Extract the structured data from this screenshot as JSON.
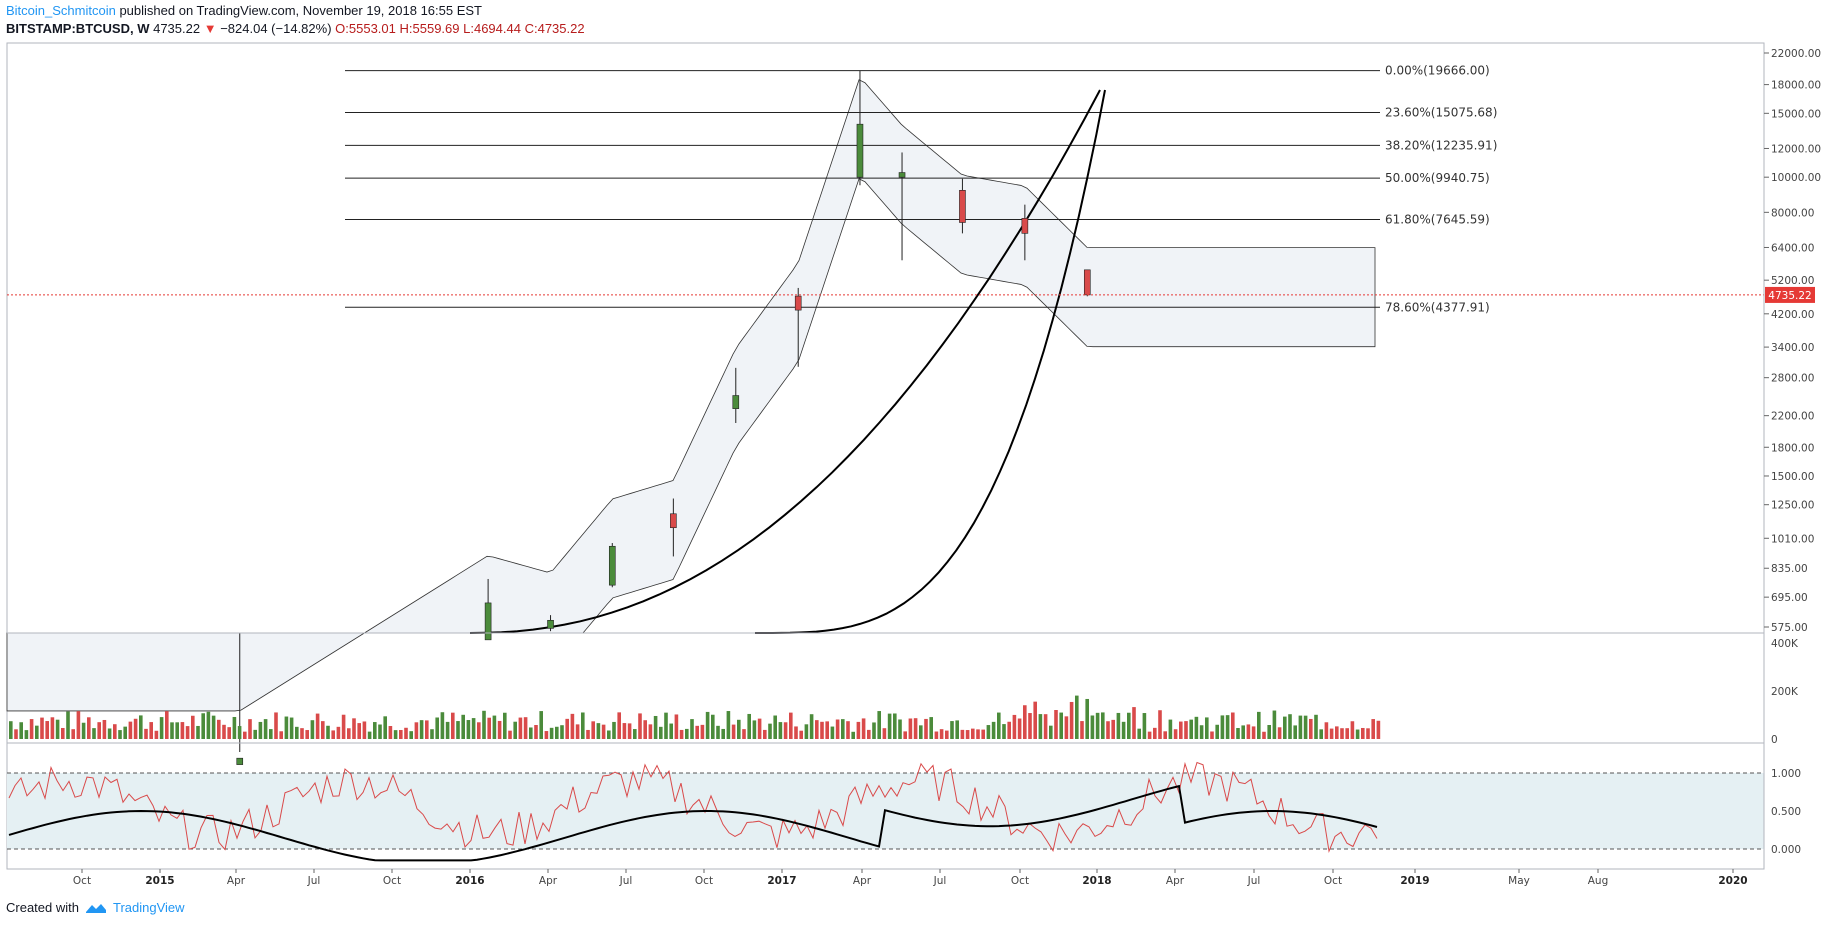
{
  "header": {
    "author": "Bitcoin_Schmitcoin",
    "published": "published on TradingView.com, November 19, 2018 16:55 EST",
    "symbol": "BITSTAMP:BTCUSD, W",
    "last": "4735.22",
    "change": "−824.04 (−14.82%)",
    "o": "O:5553.01",
    "h": "H:5559.69",
    "l": "L:4694.44",
    "c": "C:4735.22"
  },
  "footer": {
    "created_with": "Created with",
    "brand": "TradingView"
  },
  "colors": {
    "up": "#4b8b3b",
    "down": "#d94a4a",
    "price_line": "#e53935",
    "osc_red": "#d94a4a",
    "osc_black": "#000000",
    "band_fill": "#f0f3f7",
    "osc_band": "#e5f0f3",
    "ma": "#2196f3"
  },
  "chart_data": {
    "type": "candlestick",
    "symbol": "BITSTAMP:BTCUSD",
    "interval": "W",
    "price_axis": {
      "scale": "log",
      "ticks": [
        575,
        695,
        835,
        1010,
        1250,
        1500,
        1800,
        2200,
        2800,
        3400,
        4200,
        5200,
        6400,
        8000,
        10000,
        12000,
        15000,
        18000,
        22000
      ],
      "tick_labels": [
        "575.00",
        "695.00",
        "835.00",
        "1010.00",
        "1250.00",
        "1500.00",
        "1800.00",
        "2200.00",
        "2800.00",
        "3400.00",
        "4200.00",
        "5200.00",
        "6400.00",
        "8000.00",
        "10000.00",
        "12000.00",
        "15000.00",
        "18000.00",
        "22000.00"
      ]
    },
    "current_price": {
      "value": 4735.22,
      "label": "4735.22"
    },
    "time_axis": {
      "labels": [
        "Oct",
        "2015",
        "Apr",
        "Jul",
        "Oct",
        "2016",
        "Apr",
        "Jul",
        "Oct",
        "2017",
        "Apr",
        "Jul",
        "Oct",
        "2018",
        "Apr",
        "Jul",
        "Oct",
        "2019",
        "May",
        "Aug",
        "2020"
      ],
      "bold": [
        "2015",
        "2016",
        "2017",
        "2018",
        "2019",
        "2020"
      ]
    },
    "fib_levels": [
      {
        "value": 19666.0,
        "label": "0.00%(19666.00)"
      },
      {
        "value": 15075.68,
        "label": "23.60%(15075.68)"
      },
      {
        "value": 12235.91,
        "label": "38.20%(12235.91)"
      },
      {
        "value": 9940.75,
        "label": "50.00%(9940.75)"
      },
      {
        "value": 7645.59,
        "label": "61.80%(7645.59)"
      },
      {
        "value": 4377.91,
        "label": "78.60%(4377.91)"
      }
    ],
    "candles_monthly_approx": [
      {
        "t": "2015-06",
        "o": 240,
        "h": 260,
        "l": 220,
        "c": 250
      },
      {
        "t": "2016-06",
        "o": 530,
        "h": 780,
        "l": 520,
        "c": 670
      },
      {
        "t": "2016-09",
        "o": 570,
        "h": 620,
        "l": 560,
        "c": 600
      },
      {
        "t": "2016-12",
        "o": 750,
        "h": 980,
        "l": 740,
        "c": 960
      },
      {
        "t": "2017-03",
        "o": 1180,
        "h": 1300,
        "l": 900,
        "c": 1080
      },
      {
        "t": "2017-06",
        "o": 2300,
        "h": 2980,
        "l": 2100,
        "c": 2500
      },
      {
        "t": "2017-09",
        "o": 4700,
        "h": 4950,
        "l": 3000,
        "c": 4300
      },
      {
        "t": "2017-12",
        "o": 10000,
        "h": 19666,
        "l": 9500,
        "c": 14000
      },
      {
        "t": "2018-02",
        "o": 10000,
        "h": 11700,
        "l": 5900,
        "c": 10300
      },
      {
        "t": "2018-05",
        "o": 9200,
        "h": 9900,
        "l": 7000,
        "c": 7500
      },
      {
        "t": "2018-08",
        "o": 7700,
        "h": 8400,
        "l": 5900,
        "c": 7000
      },
      {
        "t": "2018-11",
        "o": 5553.01,
        "h": 5559.69,
        "l": 4694.44,
        "c": 4735.22
      }
    ],
    "volume_axis": {
      "ticks": [
        0,
        200000,
        400000
      ],
      "tick_labels": [
        "0",
        "200K",
        "400K"
      ]
    },
    "oscillator_axis": {
      "ticks": [
        0,
        0.5,
        1.0
      ],
      "tick_labels": [
        "0.000",
        "0.500",
        "1.000"
      ],
      "band": [
        0,
        1
      ]
    }
  }
}
